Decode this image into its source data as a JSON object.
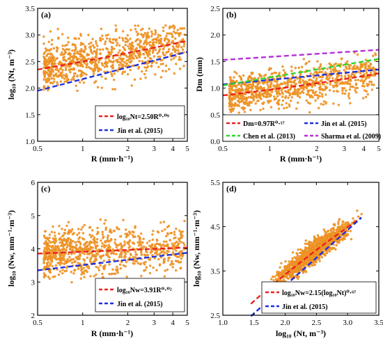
{
  "colors": {
    "scatter": "#f5a030",
    "scatter_edge": "#e07a10",
    "red": "#e8221d",
    "blue": "#1f2fe0",
    "green": "#2ed62e",
    "purple": "#b530d6"
  },
  "chart_data": [
    {
      "type": "scatter",
      "panel_label": "(a)",
      "xlabel": "R (mm·h⁻¹)",
      "ylabel": "log₁₀ (Nt, m⁻³)",
      "xscale": "log",
      "xlim": [
        0.5,
        5
      ],
      "ylim": [
        1.0,
        3.5
      ],
      "x_ticks": [
        0.5,
        1,
        2,
        3,
        4,
        5
      ],
      "x_tick_labels": [
        "0.5",
        "1",
        "2",
        "3",
        "4",
        "5"
      ],
      "y_ticks": [
        1.0,
        1.5,
        2.0,
        2.5,
        3.0,
        3.5
      ],
      "y_tick_labels": [
        "1.0",
        "1.5",
        "2.0",
        "2.5",
        "3.0",
        "3.5"
      ],
      "scatter": {
        "model": "power",
        "a": 2.5,
        "b": 0.09,
        "log10": false,
        "spread": 0.22,
        "clip": [
          1.95,
          3.2
        ],
        "count": 900
      },
      "legend_position": "bottom-right",
      "series": [
        {
          "name": "log₁₀Nt=2.50R⁰·⁰⁹",
          "color": "red",
          "model": "power",
          "a": 2.5,
          "b": 0.09,
          "log10": false
        },
        {
          "name": "Jin et al. (2015)",
          "color": "blue",
          "x": [
            0.5,
            5
          ],
          "y": [
            1.95,
            2.68
          ]
        }
      ]
    },
    {
      "type": "scatter",
      "panel_label": "(b)",
      "xlabel": "R (mm·h⁻¹)",
      "ylabel": "Dm (mm)",
      "xscale": "log",
      "xlim": [
        0.5,
        5
      ],
      "ylim": [
        0.0,
        2.5
      ],
      "x_ticks": [
        0.5,
        1,
        2,
        3,
        4,
        5
      ],
      "x_tick_labels": [
        "0.5",
        "1",
        "2",
        "3",
        "4",
        "5"
      ],
      "y_ticks": [
        0.0,
        0.5,
        1.0,
        1.5,
        2.0,
        2.5
      ],
      "y_tick_labels": [
        "0.0",
        "0.5",
        "1.0",
        "1.5",
        "2.0",
        "2.5"
      ],
      "scatter": {
        "model": "power",
        "a": 0.97,
        "b": 0.17,
        "log10": false,
        "spread": 0.18,
        "clip": [
          0.5,
          2.05
        ],
        "count": 900
      },
      "legend_position": "bottom",
      "series": [
        {
          "name": "Dm=0.97R⁰·¹⁷",
          "color": "red",
          "model": "power",
          "a": 0.97,
          "b": 0.17,
          "log10": false
        },
        {
          "name": "Jin et al. (2015)",
          "color": "blue",
          "x": [
            0.5,
            5
          ],
          "y": [
            1.07,
            1.35
          ]
        },
        {
          "name": "Chen et al. (2013)",
          "color": "green",
          "x": [
            0.5,
            5
          ],
          "y": [
            1.05,
            1.55
          ]
        },
        {
          "name": "Sharma et al. (2009)",
          "color": "purple",
          "x": [
            0.5,
            5
          ],
          "y": [
            1.53,
            1.72
          ]
        }
      ]
    },
    {
      "type": "scatter",
      "panel_label": "(c)",
      "xlabel": "R (mm·h⁻¹)",
      "ylabel": "log₁₀ (Nw, mm⁻¹·m⁻³)",
      "xscale": "log",
      "xlim": [
        0.5,
        5
      ],
      "ylim": [
        2,
        6
      ],
      "x_ticks": [
        0.5,
        1,
        2,
        3,
        4,
        5
      ],
      "x_tick_labels": [
        "0.5",
        "1",
        "2",
        "3",
        "4",
        "5"
      ],
      "y_ticks": [
        2,
        3,
        4,
        5,
        6
      ],
      "y_tick_labels": [
        "2",
        "3",
        "4",
        "5",
        "6"
      ],
      "scatter": {
        "model": "power",
        "a": 3.91,
        "b": 0.02,
        "log10": false,
        "spread": 0.38,
        "clip": [
          2.95,
          4.9
        ],
        "count": 900
      },
      "legend_position": "bottom-right",
      "series": [
        {
          "name": "log₁₀Nw=3.91R⁰·⁰²",
          "color": "red",
          "model": "power",
          "a": 3.91,
          "b": 0.02,
          "log10": false
        },
        {
          "name": "Jin et al. (2015)",
          "color": "blue",
          "x": [
            0.5,
            5
          ],
          "y": [
            3.35,
            3.88
          ]
        }
      ]
    },
    {
      "type": "scatter",
      "panel_label": "(d)",
      "xlabel": "log₁₀ (Nt, m⁻³)",
      "ylabel": "log₁₀ (Nw, mm⁻¹·m⁻³)",
      "xscale": "linear",
      "xlim": [
        1.0,
        3.5
      ],
      "ylim": [
        2.5,
        5.5
      ],
      "x_ticks": [
        1.0,
        1.5,
        2.0,
        2.5,
        3.0,
        3.5
      ],
      "x_tick_labels": [
        "1.0",
        "1.5",
        "2.0",
        "2.5",
        "3.0",
        "3.5"
      ],
      "y_ticks": [
        2.5,
        3.5,
        4.5,
        5.5
      ],
      "y_tick_labels": [
        "2.5",
        "3.5",
        "4.5",
        "5.5"
      ],
      "scatter": {
        "model": "power",
        "a": 2.15,
        "b": 0.67,
        "log10": true,
        "spread": 0.12,
        "xrange": [
          1.6,
          3.25
        ],
        "clip": [
          2.9,
          4.95
        ],
        "count": 1200
      },
      "legend_position": "bottom-right",
      "series": [
        {
          "name": "log₁₀Nw=2.15(log₁₀Nt)⁰·⁶⁷",
          "color": "red",
          "model": "power",
          "a": 2.15,
          "b": 0.67,
          "log10": true,
          "xrange": [
            1.45,
            3.22
          ]
        },
        {
          "name": "Jin et al. (2015)",
          "color": "blue",
          "x": [
            1.45,
            3.22
          ],
          "y": [
            2.48,
            4.7
          ]
        }
      ]
    }
  ]
}
